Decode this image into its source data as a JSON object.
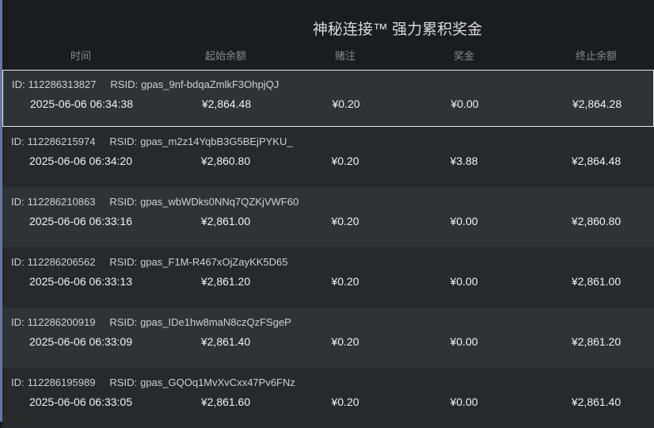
{
  "title": "神秘连接™ 强力累积奖金",
  "columns": [
    "时间",
    "起始余额",
    "赌注",
    "奖金",
    "终止余额"
  ],
  "labels": {
    "id": "ID:",
    "rsid": "RSID:"
  },
  "rows": [
    {
      "id": "112286313827",
      "rsid": "gpas_9nf-bdqaZmlkF3OhpjQJ",
      "time": "2025-06-06 06:34:38",
      "start": "¥2,864.48",
      "bet": "¥0.20",
      "prize": "¥0.00",
      "end": "¥2,864.28",
      "selected": true
    },
    {
      "id": "112286215974",
      "rsid": "gpas_m2z14YqbB3G5BEjPYKU_",
      "time": "2025-06-06 06:34:20",
      "start": "¥2,860.80",
      "bet": "¥0.20",
      "prize": "¥3.88",
      "end": "¥2,864.48"
    },
    {
      "id": "112286210863",
      "rsid": "gpas_wbWDks0NNq7QZKjVWF60",
      "time": "2025-06-06 06:33:16",
      "start": "¥2,861.00",
      "bet": "¥0.20",
      "prize": "¥0.00",
      "end": "¥2,860.80"
    },
    {
      "id": "112286206562",
      "rsid": "gpas_F1M-R467xOjZayKK5D65",
      "time": "2025-06-06 06:33:13",
      "start": "¥2,861.20",
      "bet": "¥0.20",
      "prize": "¥0.00",
      "end": "¥2,861.00"
    },
    {
      "id": "112286200919",
      "rsid": "gpas_IDe1hw8maN8czQzFSgeP",
      "time": "2025-06-06 06:33:09",
      "start": "¥2,861.40",
      "bet": "¥0.20",
      "prize": "¥0.00",
      "end": "¥2,861.20"
    },
    {
      "id": "112286195989",
      "rsid": "gpas_GQOq1MvXvCxx47Pv6FNz",
      "time": "2025-06-06 06:33:05",
      "start": "¥2,861.60",
      "bet": "¥0.20",
      "prize": "¥0.00",
      "end": "¥2,861.40"
    }
  ]
}
